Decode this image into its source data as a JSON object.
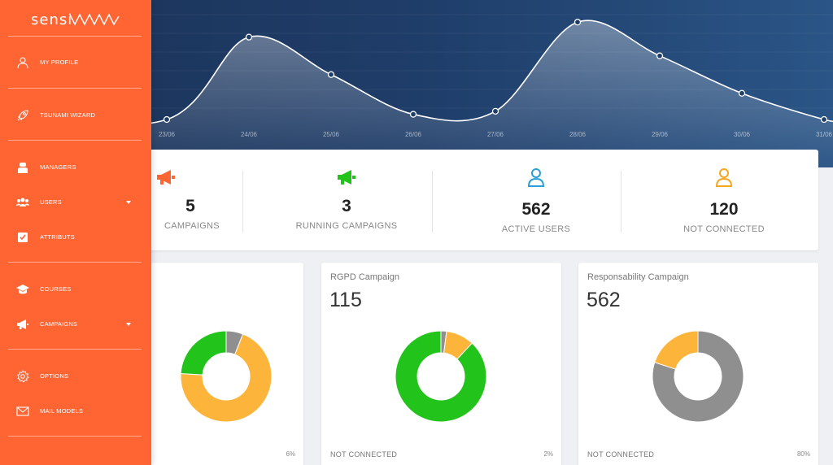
{
  "brand": {
    "logo_text": "sensi"
  },
  "sidebar": {
    "items": [
      {
        "label": "MY PROFILE",
        "icon": "user-icon"
      },
      {
        "label": "TSUNAMI WIZARD",
        "icon": "rocket-icon"
      },
      {
        "label": "MANAGERS",
        "icon": "manager-icon"
      },
      {
        "label": "USERS",
        "icon": "users-icon",
        "has_dropdown": true
      },
      {
        "label": "ATTRIBUTS",
        "icon": "checkbox-icon"
      },
      {
        "label": "COURSES",
        "icon": "graduation-cap-icon"
      },
      {
        "label": "CAMPAIGNS",
        "icon": "megaphone-icon",
        "has_dropdown": true
      },
      {
        "label": "OPTIONS",
        "icon": "gear-icon"
      },
      {
        "label": "MAIL MODELS",
        "icon": "envelope-icon"
      }
    ]
  },
  "chart_data": {
    "type": "area",
    "categories": [
      "23/06",
      "24/06",
      "25/06",
      "26/06",
      "27/06",
      "28/06",
      "29/06",
      "30/06",
      "31/06"
    ],
    "values": [
      0,
      11,
      6,
      0.7,
      1.1,
      13,
      8.5,
      3.5,
      0
    ],
    "ylim": [
      0,
      14
    ],
    "grid": true
  },
  "stats": [
    {
      "value": "5",
      "label": "CAMPAIGNS",
      "icon": "megaphone-icon",
      "color": "#ff6433"
    },
    {
      "value": "3",
      "label": "RUNNING CAMPAIGNS",
      "icon": "megaphone-icon",
      "color": "#22c31b"
    },
    {
      "value": "562",
      "label": "ACTIVE USERS",
      "icon": "user-icon",
      "color": "#2d9fd8"
    },
    {
      "value": "120",
      "label": "NOT CONNECTED",
      "icon": "user-icon",
      "color": "#f5a623"
    }
  ],
  "campaigns": [
    {
      "title": "",
      "value": "",
      "footer": "",
      "pct": "6%",
      "slices": [
        {
          "value": 6,
          "color": "#8f8f8f"
        },
        {
          "value": 70,
          "color": "#fdb43a"
        },
        {
          "value": 24,
          "color": "#22c31b"
        }
      ]
    },
    {
      "title": "RGPD Campaign",
      "value": "115",
      "footer": "NOT CONNECTED",
      "pct": "2%",
      "slices": [
        {
          "value": 2,
          "color": "#8f8f8f"
        },
        {
          "value": 10,
          "color": "#fdb43a"
        },
        {
          "value": 88,
          "color": "#22c31b"
        }
      ]
    },
    {
      "title": "Responsability Campaign",
      "value": "562",
      "footer": "NOT CONNECTED",
      "pct": "80%",
      "slices": [
        {
          "value": 80,
          "color": "#8f8f8f"
        },
        {
          "value": 20,
          "color": "#fdb43a"
        }
      ]
    }
  ]
}
